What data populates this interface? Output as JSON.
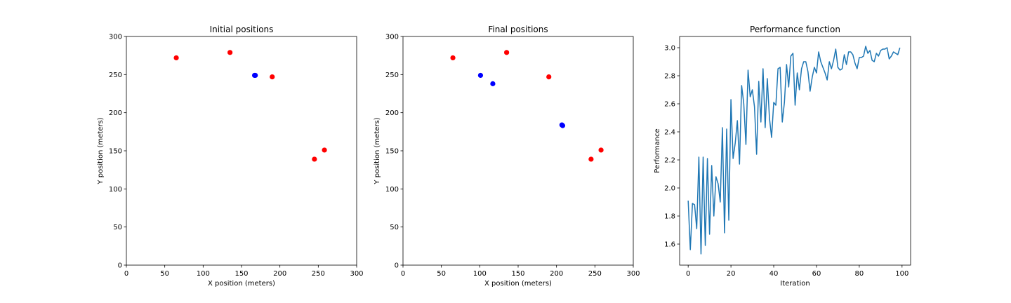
{
  "chart_data": [
    {
      "type": "scatter",
      "title": "Initial positions",
      "xlabel": "X position (meters)",
      "ylabel": "Y position (meters)",
      "xlim": [
        0,
        300
      ],
      "ylim": [
        0,
        300
      ],
      "xticks": [
        0,
        50,
        100,
        150,
        200,
        250,
        300
      ],
      "yticks": [
        0,
        50,
        100,
        150,
        200,
        250,
        300
      ],
      "grid": false,
      "series": [
        {
          "color": "#ff0000",
          "points": [
            [
              65,
              272
            ],
            [
              135,
              279
            ],
            [
              190,
              247
            ],
            [
              245,
              139
            ],
            [
              258,
              151
            ]
          ]
        },
        {
          "color": "#0000ff",
          "points": [
            [
              167,
              249
            ],
            [
              168,
              249
            ]
          ]
        }
      ]
    },
    {
      "type": "scatter",
      "title": "Final positions",
      "xlabel": "X position (meters)",
      "ylabel": "Y position (meters)",
      "xlim": [
        0,
        300
      ],
      "ylim": [
        0,
        300
      ],
      "xticks": [
        0,
        50,
        100,
        150,
        200,
        250,
        300
      ],
      "yticks": [
        0,
        50,
        100,
        150,
        200,
        250,
        300
      ],
      "grid": false,
      "series": [
        {
          "color": "#ff0000",
          "points": [
            [
              65,
              272
            ],
            [
              135,
              279
            ],
            [
              190,
              247
            ],
            [
              245,
              139
            ],
            [
              258,
              151
            ]
          ]
        },
        {
          "color": "#0000ff",
          "points": [
            [
              101,
              249
            ],
            [
              117,
              238
            ],
            [
              207,
              184
            ],
            [
              208,
              183
            ]
          ]
        }
      ]
    },
    {
      "type": "line",
      "title": "Performance function",
      "xlabel": "Iteration",
      "ylabel": "Performance",
      "xlim": [
        -4,
        104
      ],
      "ylim": [
        1.45,
        3.08
      ],
      "xticks": [
        0,
        20,
        40,
        60,
        80,
        100
      ],
      "yticks": [
        1.6,
        1.8,
        2.0,
        2.2,
        2.4,
        2.6,
        2.8,
        3.0
      ],
      "grid": false,
      "series": [
        {
          "color": "#1f77b4",
          "x": [
            0,
            1,
            2,
            3,
            4,
            5,
            6,
            7,
            8,
            9,
            10,
            11,
            12,
            13,
            14,
            15,
            16,
            17,
            18,
            19,
            20,
            21,
            22,
            23,
            24,
            25,
            26,
            27,
            28,
            29,
            30,
            31,
            32,
            33,
            34,
            35,
            36,
            37,
            38,
            39,
            40,
            41,
            42,
            43,
            44,
            45,
            46,
            47,
            48,
            49,
            50,
            51,
            52,
            53,
            54,
            55,
            56,
            57,
            58,
            59,
            60,
            61,
            62,
            63,
            64,
            65,
            66,
            67,
            68,
            69,
            70,
            71,
            72,
            73,
            74,
            75,
            76,
            77,
            78,
            79,
            80,
            81,
            82,
            83,
            84,
            85,
            86,
            87,
            88,
            89,
            90,
            91,
            92,
            93,
            94,
            95,
            96,
            97,
            98,
            99
          ],
          "y": [
            1.91,
            1.56,
            1.89,
            1.88,
            1.71,
            2.22,
            1.53,
            2.22,
            1.59,
            2.21,
            1.67,
            2.16,
            1.8,
            2.08,
            2.03,
            1.9,
            2.43,
            1.68,
            2.42,
            1.77,
            2.63,
            2.21,
            2.32,
            2.48,
            2.17,
            2.73,
            2.6,
            2.31,
            2.84,
            2.65,
            2.7,
            2.58,
            2.24,
            2.76,
            2.47,
            2.85,
            2.43,
            2.78,
            2.5,
            2.36,
            2.61,
            2.59,
            2.85,
            2.86,
            2.47,
            2.61,
            2.88,
            2.72,
            2.94,
            2.96,
            2.59,
            2.82,
            2.7,
            2.85,
            2.9,
            2.9,
            2.83,
            2.69,
            2.79,
            2.86,
            2.82,
            2.97,
            2.9,
            2.86,
            2.82,
            2.77,
            2.9,
            2.85,
            2.91,
            2.99,
            2.86,
            2.84,
            2.85,
            2.95,
            2.88,
            2.97,
            2.97,
            2.95,
            2.89,
            2.85,
            2.93,
            2.93,
            2.94,
            3.01,
            2.96,
            2.98,
            2.91,
            2.9,
            2.96,
            2.94,
            2.98,
            2.99,
            2.99,
            3.0,
            2.92,
            2.94,
            2.97,
            2.96,
            2.95,
            3.0
          ]
        }
      ]
    }
  ]
}
